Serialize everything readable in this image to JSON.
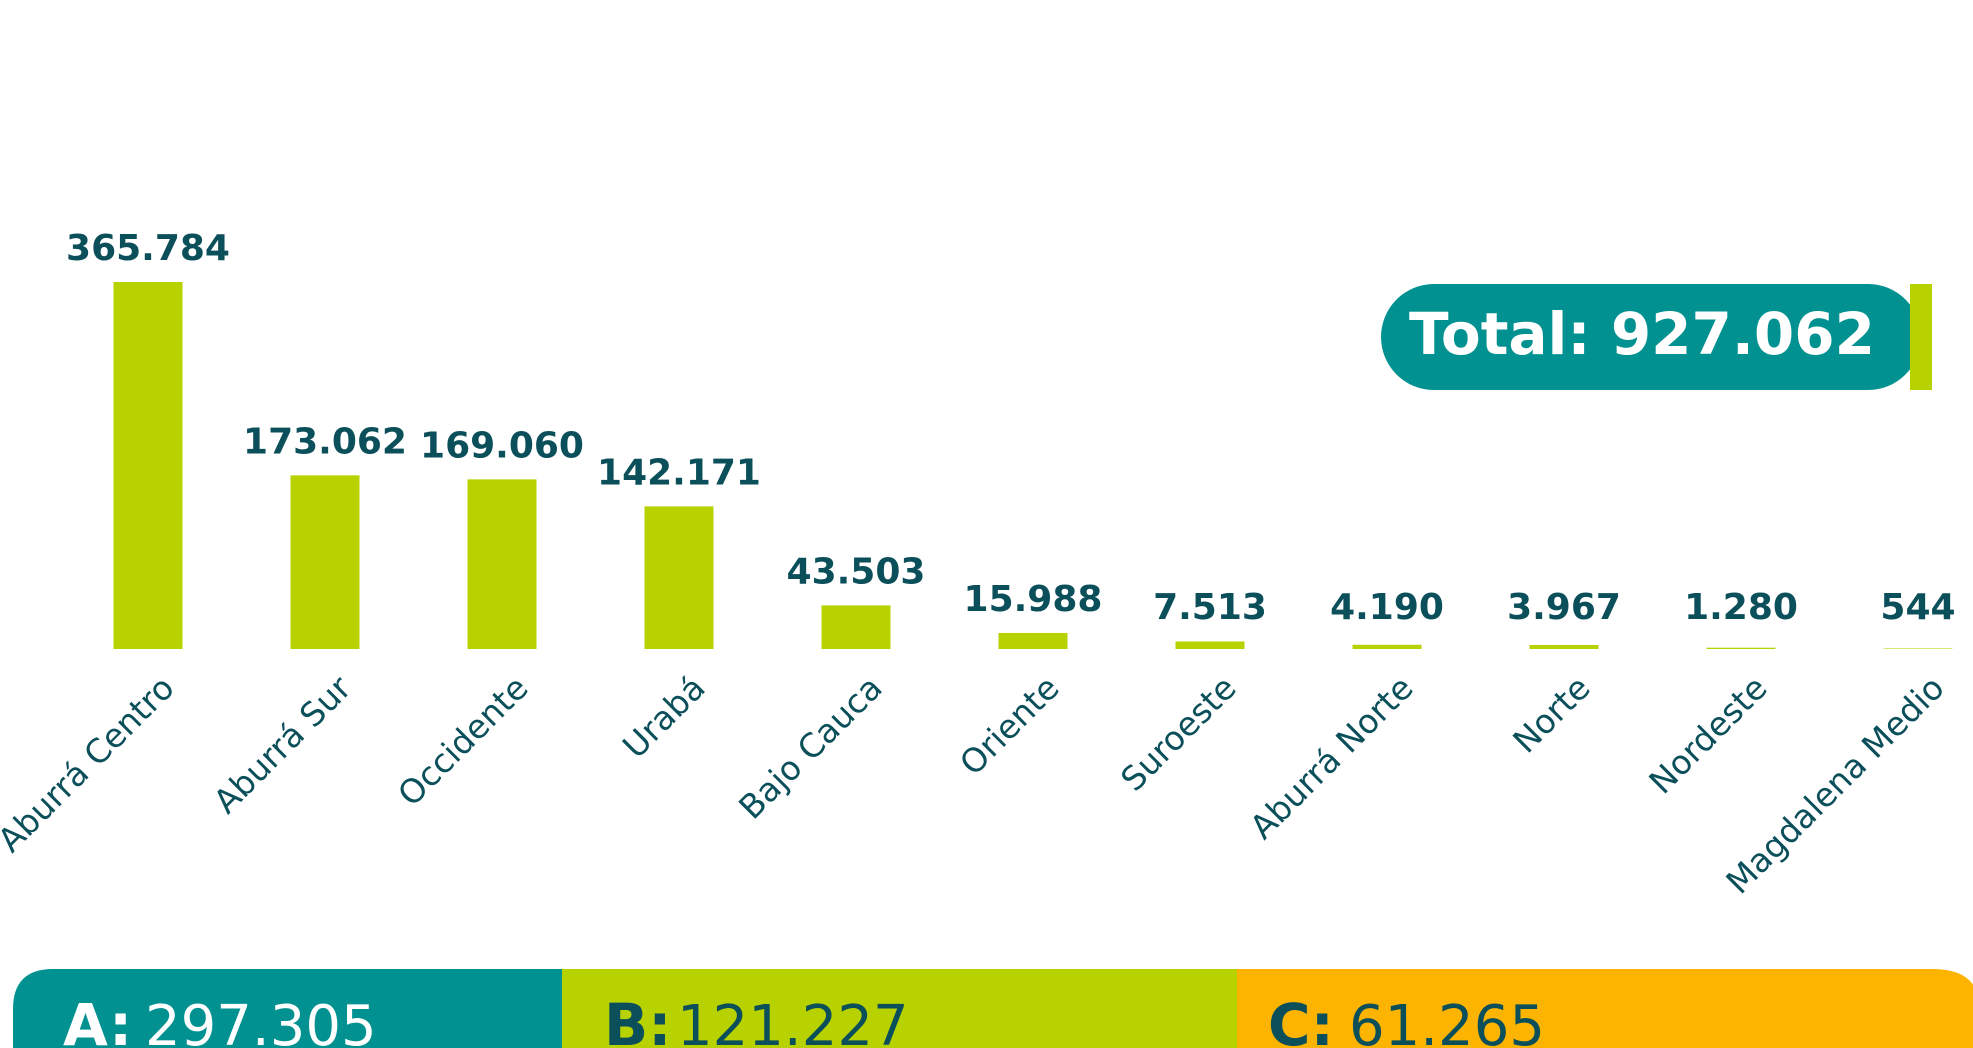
{
  "chart_data": {
    "type": "bar",
    "categories": [
      "Aburrá Centro",
      "Aburrá Sur",
      "Occidente",
      "Urabá",
      "Bajo Cauca",
      "Oriente",
      "Suroeste",
      "Aburrá Norte",
      "Norte",
      "Nordeste",
      "Magdalena Medio"
    ],
    "values": [
      365784,
      173062,
      169060,
      142171,
      43503,
      15988,
      7513,
      4190,
      3967,
      1280,
      544
    ],
    "value_labels": [
      "365.784",
      "173.062",
      "169.060",
      "142.171",
      "43.503",
      "15.988",
      "7.513",
      "4.190",
      "3.967",
      "1.280",
      "544"
    ],
    "color": "#b8d200"
  },
  "total": "Total: 927.062",
  "summary": [
    {
      "key": "A:",
      "value": "297.305"
    },
    {
      "key": "B:",
      "value": "121.227"
    },
    {
      "key": "C:",
      "value": "61.265"
    }
  ]
}
